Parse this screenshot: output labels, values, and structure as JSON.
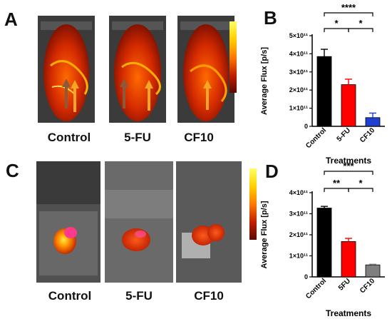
{
  "panels": {
    "A": {
      "letter": "A",
      "labels": [
        "Control",
        "5-FU",
        "CF10"
      ]
    },
    "B": {
      "letter": "B"
    },
    "C": {
      "letter": "C",
      "labels": [
        "Control",
        "5-FU",
        "CF10"
      ]
    },
    "D": {
      "letter": "D"
    }
  },
  "colors": {
    "control": "#000000",
    "fu": "#ff0000",
    "cf10_B": "#1f3fd1",
    "cf10_D": "#7f7f7f",
    "arrow": "#f5a623",
    "heat_low": "#7a0d00",
    "heat_high": "#ffe433"
  },
  "chart_data": [
    {
      "panel": "B",
      "type": "bar",
      "categories": [
        "Control",
        "5-FU",
        "CF10"
      ],
      "values": [
        385000000000.0,
        230000000000.0,
        48000000000.0
      ],
      "errors": [
        40000000000.0,
        30000000000.0,
        25000000000.0
      ],
      "ylabel": "Average Flux [p/s]",
      "xlabel": "Treatments",
      "ylim": [
        0,
        500000000000.0
      ],
      "yticks": [
        "0",
        "1×10¹¹",
        "2×10¹¹",
        "3×10¹¹",
        "4×10¹¹",
        "5×10¹¹"
      ],
      "significance": [
        {
          "from": 0,
          "to": 2,
          "label": "****"
        },
        {
          "from": 0,
          "to": 1,
          "label": "*"
        },
        {
          "from": 1,
          "to": 2,
          "label": "*"
        }
      ]
    },
    {
      "panel": "D",
      "type": "bar",
      "categories": [
        "Control",
        "5FU",
        "CF10"
      ],
      "values": [
        327000000000.0,
        168000000000.0,
        57000000000.0
      ],
      "errors": [
        8000000000.0,
        15000000000.0,
        3000000000.0
      ],
      "ylabel": "Average Flux [p/s]",
      "xlabel": "Treatments",
      "ylim": [
        0,
        400000000000.0
      ],
      "yticks": [
        "0",
        "1×10¹¹",
        "2×10¹¹",
        "3×10¹¹",
        "4×10¹¹"
      ],
      "significance": [
        {
          "from": 0,
          "to": 2,
          "label": "***"
        },
        {
          "from": 0,
          "to": 1,
          "label": "**"
        },
        {
          "from": 1,
          "to": 2,
          "label": "*"
        }
      ]
    }
  ]
}
